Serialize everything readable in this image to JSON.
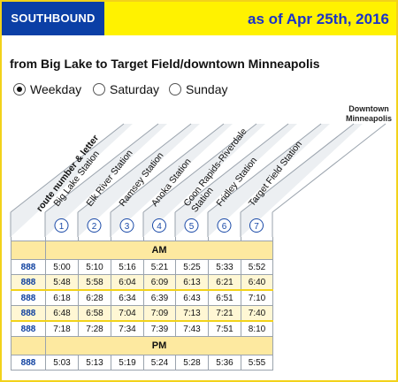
{
  "header": {
    "direction": "SOUTHBOUND",
    "as_of": "as of Apr 25th, 2016",
    "bar_color": "#fff200",
    "tab_color": "#0b3fa6"
  },
  "route_title": "from Big Lake to Target Field/downtown Minneapolis",
  "day_options": [
    {
      "label": "Weekday",
      "selected": true
    },
    {
      "label": "Saturday",
      "selected": false
    },
    {
      "label": "Sunday",
      "selected": false
    }
  ],
  "columns": {
    "route": "route number & letter",
    "downtown_label": [
      "Downtown",
      "Minneapolis"
    ],
    "stations": [
      {
        "num": "1",
        "lines": [
          "Big Lake Station"
        ]
      },
      {
        "num": "2",
        "lines": [
          "Elk River Station"
        ]
      },
      {
        "num": "3",
        "lines": [
          "Ramsey Station"
        ]
      },
      {
        "num": "4",
        "lines": [
          "Anoka Station"
        ]
      },
      {
        "num": "5",
        "lines": [
          "Coon Rapids-Riverdale",
          "Station"
        ]
      },
      {
        "num": "6",
        "lines": [
          "Fridley Station"
        ]
      },
      {
        "num": "7",
        "lines": [
          "Target Field Station"
        ]
      }
    ]
  },
  "sections": [
    {
      "label": "AM",
      "trips": [
        {
          "route": "888",
          "times": [
            "5:00",
            "5:10",
            "5:16",
            "5:21",
            "5:25",
            "5:33",
            "5:52"
          ]
        },
        {
          "route": "888",
          "times": [
            "5:48",
            "5:58",
            "6:04",
            "6:09",
            "6:13",
            "6:21",
            "6:40"
          ]
        },
        {
          "route": "888",
          "times": [
            "6:18",
            "6:28",
            "6:34",
            "6:39",
            "6:43",
            "6:51",
            "7:10"
          ]
        },
        {
          "route": "888",
          "times": [
            "6:48",
            "6:58",
            "7:04",
            "7:09",
            "7:13",
            "7:21",
            "7:40"
          ]
        },
        {
          "route": "888",
          "times": [
            "7:18",
            "7:28",
            "7:34",
            "7:39",
            "7:43",
            "7:51",
            "8:10"
          ]
        }
      ]
    },
    {
      "label": "PM",
      "trips": [
        {
          "route": "888",
          "times": [
            "5:03",
            "5:13",
            "5:19",
            "5:24",
            "5:28",
            "5:36",
            "5:55"
          ]
        }
      ]
    }
  ]
}
